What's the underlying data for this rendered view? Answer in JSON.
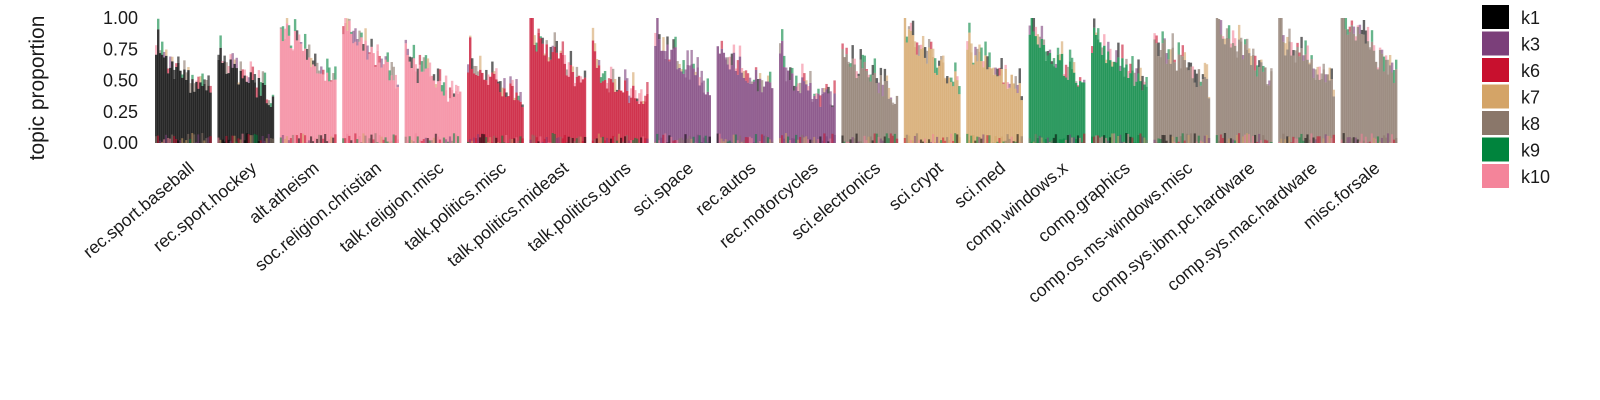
{
  "chart_data": {
    "type": "bar",
    "title": "",
    "xlabel": "",
    "ylabel": "topic proportion",
    "ylim": [
      0,
      1
    ],
    "yticks": [
      "0.00",
      "0.25",
      "0.50",
      "0.75",
      "1.00"
    ],
    "grid": false,
    "legend_position": "right",
    "legend": [
      {
        "name": "k1",
        "color": "#000000"
      },
      {
        "name": "k3",
        "color": "#7b3f7a"
      },
      {
        "name": "k6",
        "color": "#c8102e"
      },
      {
        "name": "k7",
        "color": "#d4a467"
      },
      {
        "name": "k8",
        "color": "#8a776a"
      },
      {
        "name": "k9",
        "color": "#00843d"
      },
      {
        "name": "k10",
        "color": "#f4849a"
      }
    ],
    "groups": [
      {
        "label": "rec.sport.baseball",
        "dominant": "k1",
        "level": 0.6
      },
      {
        "label": "rec.sport.hockey",
        "dominant": "k1",
        "level": 0.58
      },
      {
        "label": "alt.atheism",
        "dominant": "k10",
        "level": 0.8
      },
      {
        "label": "soc.religion.christian",
        "dominant": "k10",
        "level": 0.82
      },
      {
        "label": "talk.religion.misc",
        "dominant": "k10",
        "level": 0.55
      },
      {
        "label": "talk.politics.misc",
        "dominant": "k6",
        "level": 0.55
      },
      {
        "label": "talk.politics.mideast",
        "dominant": "k6",
        "level": 0.75
      },
      {
        "label": "talk.politics.guns",
        "dominant": "k6",
        "level": 0.5
      },
      {
        "label": "sci.space",
        "dominant": "k3",
        "level": 0.72
      },
      {
        "label": "rec.autos",
        "dominant": "k3",
        "level": 0.65
      },
      {
        "label": "rec.motorcycles",
        "dominant": "k3",
        "level": 0.5
      },
      {
        "label": "sci.electronics",
        "dominant": "k8",
        "level": 0.6
      },
      {
        "label": "sci.crypt",
        "dominant": "k7",
        "level": 0.75
      },
      {
        "label": "sci.med",
        "dominant": "k7",
        "level": 0.65
      },
      {
        "label": "comp.windows.x",
        "dominant": "k9",
        "level": 0.75
      },
      {
        "label": "comp.graphics",
        "dominant": "k9",
        "level": 0.72
      },
      {
        "label": "comp.os.ms-windows.misc",
        "dominant": "k8",
        "level": 0.7
      },
      {
        "label": "comp.sys.ibm.pc.hardware",
        "dominant": "k8",
        "level": 0.8
      },
      {
        "label": "comp.sys.mac.hardware",
        "dominant": "k8",
        "level": 0.72
      },
      {
        "label": "misc.forsale",
        "dominant": "k8",
        "level": 0.85
      }
    ]
  }
}
